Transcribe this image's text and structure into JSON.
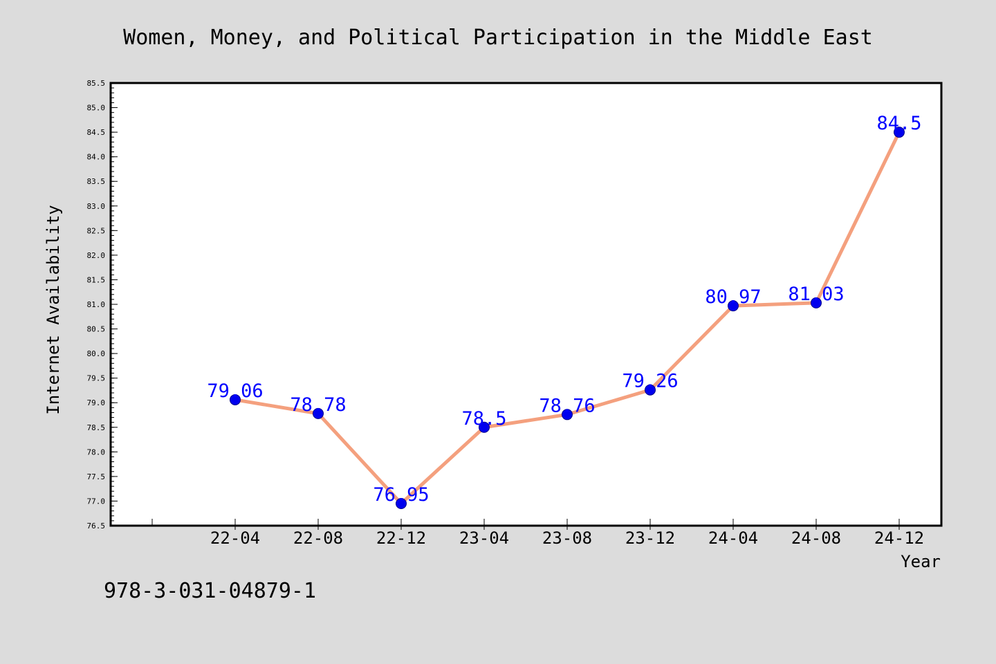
{
  "chart_data": {
    "type": "line",
    "title": "Women, Money, and Political Participation in the Middle East",
    "xlabel": "Year",
    "ylabel": "Internet Availability",
    "categories": [
      "22-04",
      "22-08",
      "22-12",
      "23-04",
      "23-08",
      "23-12",
      "24-04",
      "24-08",
      "24-12"
    ],
    "series": [
      {
        "values": [
          79.06,
          78.78,
          76.95,
          78.5,
          78.76,
          79.26,
          80.97,
          81.03,
          84.5
        ],
        "data_labels": [
          "79.06",
          "78.78",
          "76.95",
          "78.5",
          "78.76",
          "79.26",
          "80.97",
          "81.03",
          "84.5"
        ]
      }
    ],
    "ylim": [
      76.5,
      85.5
    ],
    "yticks": [
      "76.5",
      "77.0",
      "77.5",
      "78.0",
      "78.5",
      "79.0",
      "79.5",
      "80.0",
      "80.5",
      "81.0",
      "81.5",
      "82.0",
      "82.5",
      "83.0",
      "83.5",
      "84.0",
      "84.5",
      "85.0",
      "85.5"
    ],
    "grid": false,
    "colors": {
      "line": "#f4a07e",
      "marker": "#0000ee",
      "data_label": "#0000ff",
      "background": "#dcdcdc",
      "plot_background": "#ffffff"
    }
  },
  "footer_text": "978-3-031-04879-1"
}
